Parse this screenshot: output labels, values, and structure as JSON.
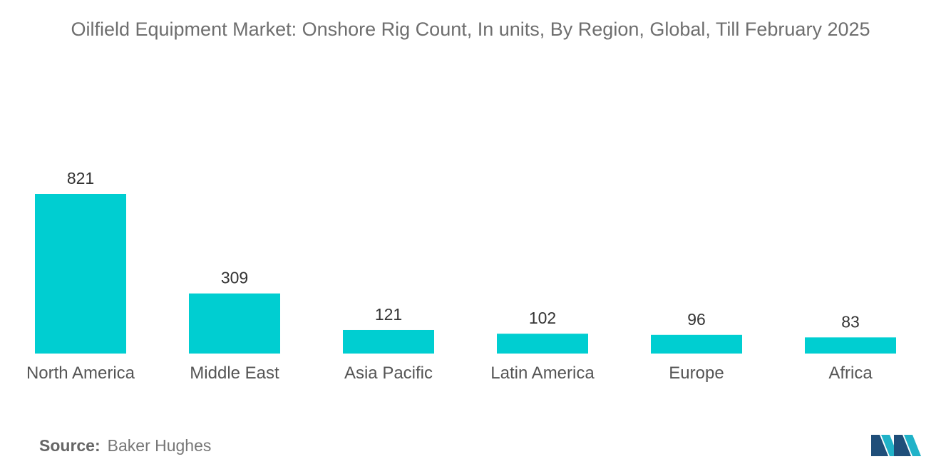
{
  "title": "Oilfield Equipment Market: Onshore Rig Count, In units, By Region, Global, Till February 2025",
  "source_label": "Source:",
  "source_value": "Baker Hughes",
  "colors": {
    "bar": "#00CED1",
    "logo_dark": "#1f4e79",
    "logo_light": "#20b2c8"
  },
  "chart_data": {
    "type": "bar",
    "title": "Oilfield Equipment Market: Onshore Rig Count, In units, By Region, Global, Till February 2025",
    "xlabel": "",
    "ylabel": "",
    "categories": [
      "North America",
      "Middle East",
      "Asia Pacific",
      "Latin America",
      "Europe",
      "Africa"
    ],
    "values": [
      821,
      309,
      121,
      102,
      96,
      83
    ],
    "ylim": [
      0,
      821
    ],
    "grid": false,
    "legend": "none"
  }
}
